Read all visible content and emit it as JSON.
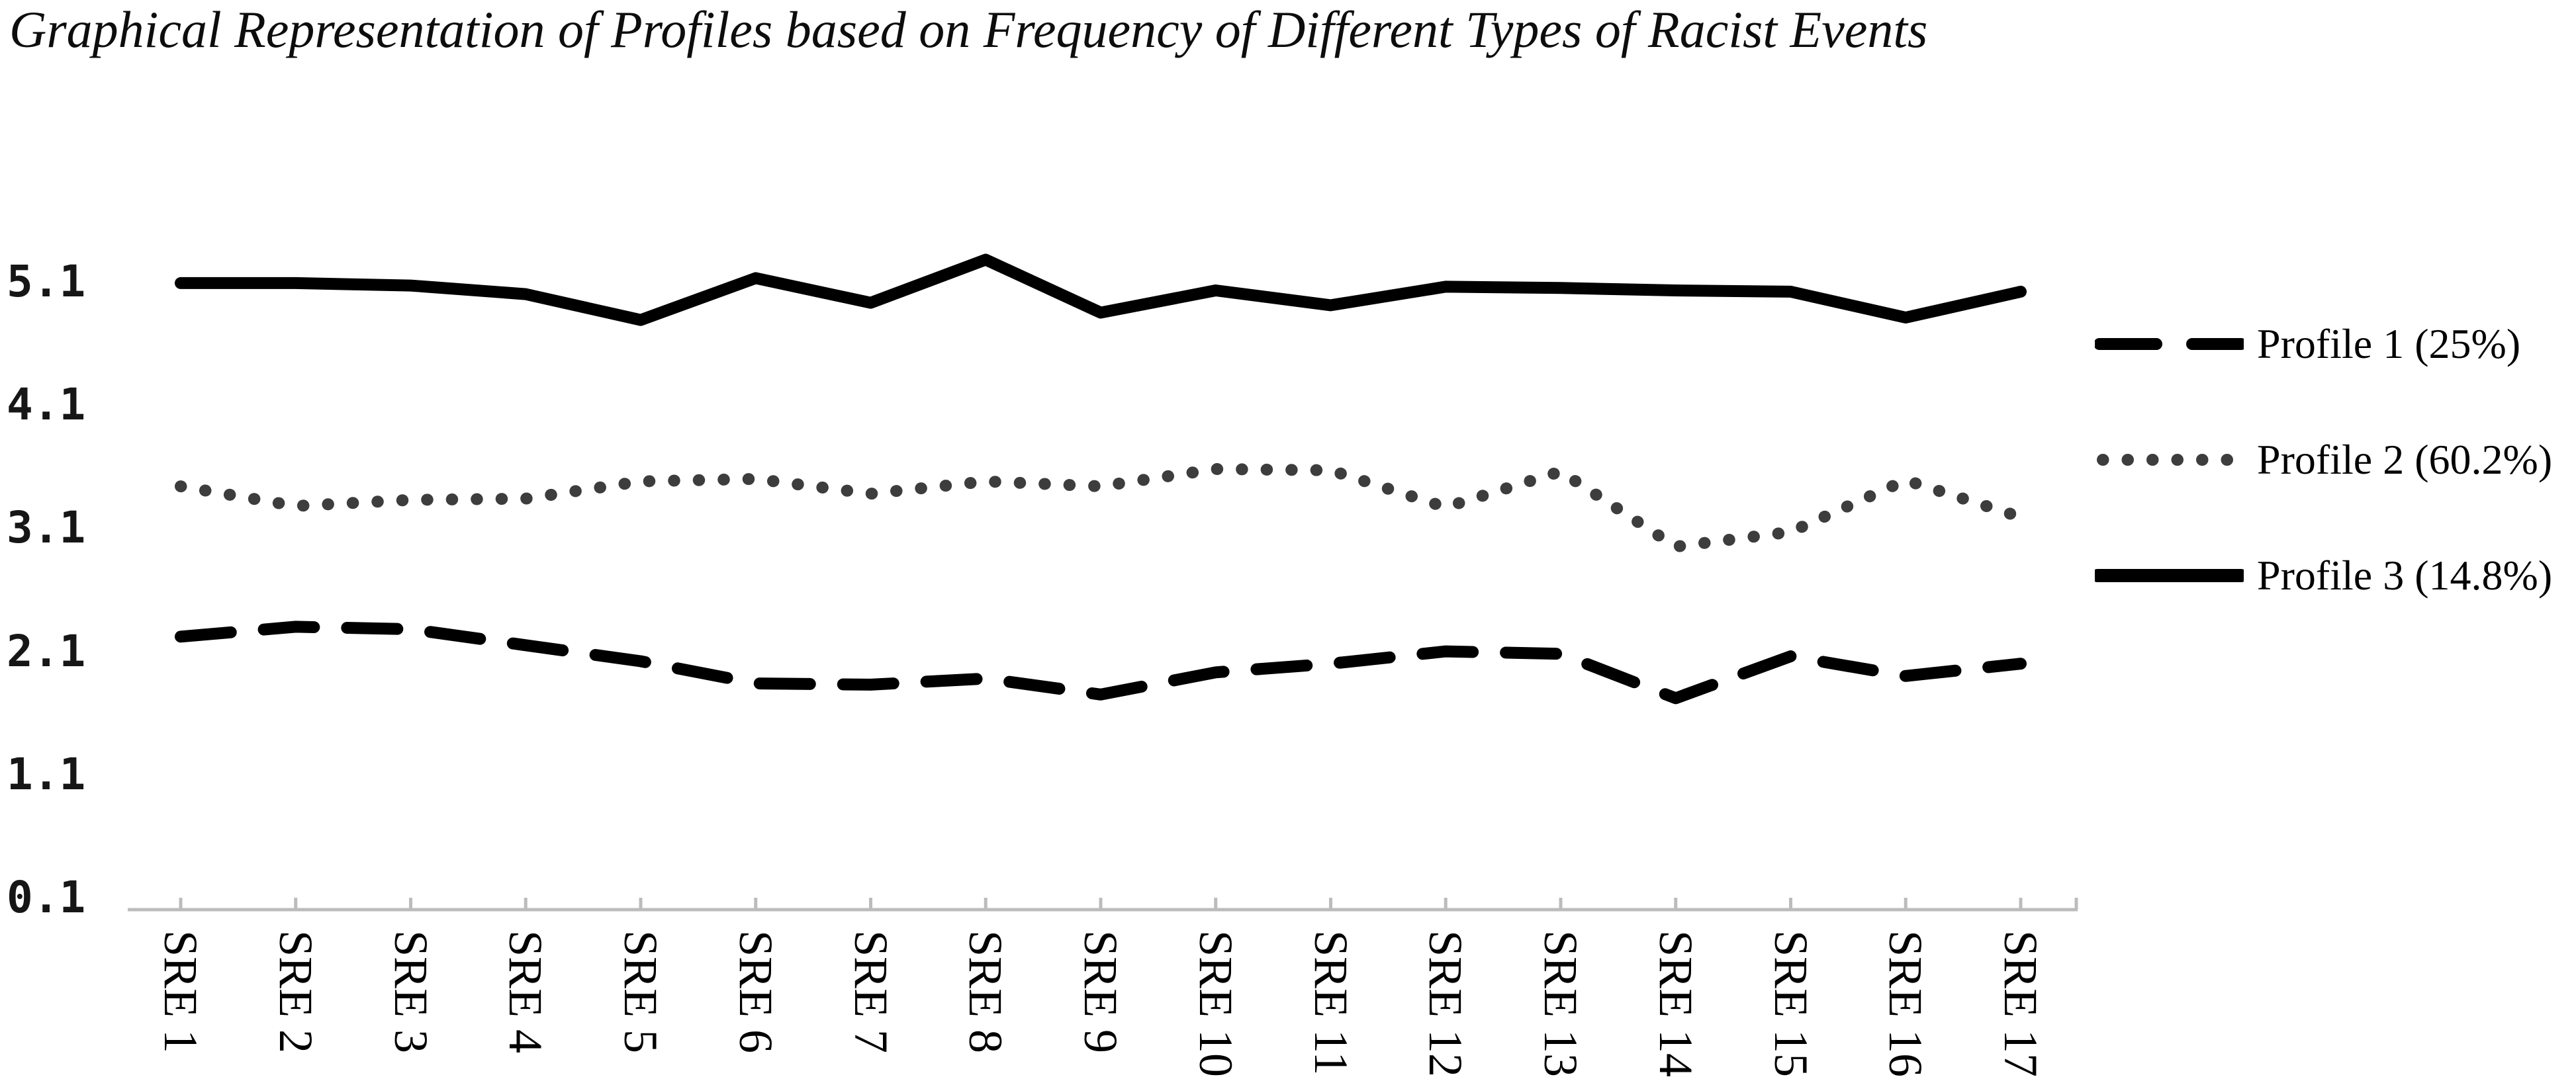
{
  "title": "Graphical Representation of Profiles based on Frequency of Different Types of Racist Events",
  "colors": {
    "series_black": "#000000",
    "series_dotted_gray": "#3d3d3d",
    "axis_gray": "#bcbcbc",
    "text": "#0d0d0d"
  },
  "chart_data": {
    "type": "line",
    "title": "Graphical Representation of Profiles based on Frequency of Different Types of Racist Events",
    "categories": [
      "SRE 1",
      "SRE 2",
      "SRE 3",
      "SRE 4",
      "SRE 5",
      "SRE 6",
      "SRE 7",
      "SRE 8",
      "SRE 9",
      "SRE 10",
      "SRE 11",
      "SRE 12",
      "SRE 13",
      "SRE 14",
      "SRE 15",
      "SRE 16",
      "SRE 17"
    ],
    "series": [
      {
        "name": "Profile 1 (25%)",
        "style": "dashed",
        "color": "#000000",
        "values": [
          2.22,
          2.3,
          2.28,
          2.15,
          2.02,
          1.84,
          1.83,
          1.88,
          1.75,
          1.93,
          2.0,
          2.1,
          2.08,
          1.72,
          2.06,
          1.9,
          2.0
        ]
      },
      {
        "name": "Profile 2 (60.2%)",
        "style": "dotted",
        "color": "#3d3d3d",
        "values": [
          3.44,
          3.28,
          3.33,
          3.34,
          3.48,
          3.5,
          3.38,
          3.48,
          3.44,
          3.58,
          3.57,
          3.27,
          3.56,
          2.95,
          3.07,
          3.49,
          3.19
        ]
      },
      {
        "name": "Profile 3 (14.8%)",
        "style": "solid",
        "color": "#000000",
        "values": [
          5.09,
          5.09,
          5.07,
          5.0,
          4.79,
          5.13,
          4.93,
          5.28,
          4.85,
          5.03,
          4.91,
          5.06,
          5.05,
          5.03,
          5.02,
          4.81,
          5.02
        ]
      }
    ],
    "y_ticks": [
      "5.1",
      "4.1",
      "3.1",
      "2.1",
      "1.1",
      "0.1"
    ],
    "ylim": [
      0,
      5.6
    ],
    "xlabel": "",
    "ylabel": "",
    "grid": false,
    "legend_position": "right",
    "x_tick_label_rotation": 90
  }
}
